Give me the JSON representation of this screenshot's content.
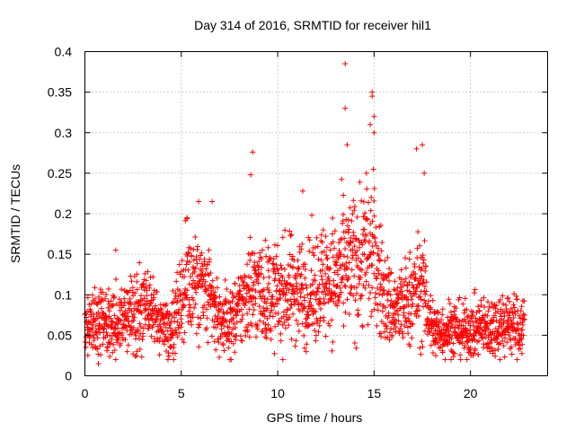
{
  "chart_data": {
    "type": "scatter",
    "title": "Day 314 of 2016, SRMTID for receiver hil1",
    "xlabel": "GPS time / hours",
    "ylabel": "SRMTID / TECUs",
    "xlim": [
      0,
      24
    ],
    "ylim": [
      0,
      0.4
    ],
    "xticks": [
      0,
      5,
      10,
      15,
      20
    ],
    "yticks": [
      0,
      0.05,
      0.1,
      0.15,
      0.2,
      0.25,
      0.3,
      0.35,
      0.4
    ],
    "grid": true,
    "marker": "+",
    "series": [
      {
        "name": "hil1",
        "color": "#ff0000",
        "profile_hours": [
          0,
          0.5,
          1,
          1.5,
          2,
          2.5,
          3,
          3.5,
          4,
          4.5,
          5,
          5.5,
          6,
          6.5,
          7,
          7.5,
          8,
          8.5,
          9,
          9.5,
          10,
          10.5,
          11,
          11.5,
          12,
          12.5,
          13,
          13.5,
          14,
          14.5,
          15,
          15.5,
          16,
          16.5,
          17,
          17.5,
          18,
          18.5,
          19,
          19.5,
          20,
          20.5,
          21,
          21.5,
          22,
          22.5,
          22.8
        ],
        "profile_median": [
          0.06,
          0.065,
          0.07,
          0.065,
          0.07,
          0.075,
          0.08,
          0.075,
          0.065,
          0.06,
          0.1,
          0.12,
          0.11,
          0.09,
          0.07,
          0.065,
          0.08,
          0.11,
          0.105,
          0.1,
          0.1,
          0.105,
          0.11,
          0.1,
          0.11,
          0.12,
          0.12,
          0.13,
          0.14,
          0.15,
          0.15,
          0.1,
          0.08,
          0.085,
          0.1,
          0.11,
          0.06,
          0.055,
          0.06,
          0.055,
          0.055,
          0.06,
          0.06,
          0.065,
          0.065,
          0.06,
          0.065
        ],
        "notable_points": [
          {
            "x": 0.7,
            "y": 0.015
          },
          {
            "x": 1.6,
            "y": 0.155
          },
          {
            "x": 5.3,
            "y": 0.195
          },
          {
            "x": 5.9,
            "y": 0.215
          },
          {
            "x": 6.6,
            "y": 0.215
          },
          {
            "x": 8.6,
            "y": 0.248
          },
          {
            "x": 8.7,
            "y": 0.276
          },
          {
            "x": 11.3,
            "y": 0.228
          },
          {
            "x": 13.5,
            "y": 0.385
          },
          {
            "x": 13.5,
            "y": 0.33
          },
          {
            "x": 13.6,
            "y": 0.285
          },
          {
            "x": 14.9,
            "y": 0.35
          },
          {
            "x": 14.9,
            "y": 0.345
          },
          {
            "x": 15.0,
            "y": 0.32
          },
          {
            "x": 14.8,
            "y": 0.31
          },
          {
            "x": 15.0,
            "y": 0.3
          },
          {
            "x": 14.6,
            "y": 0.25
          },
          {
            "x": 17.2,
            "y": 0.28
          },
          {
            "x": 17.5,
            "y": 0.285
          },
          {
            "x": 17.6,
            "y": 0.25
          },
          {
            "x": 18.2,
            "y": 0.025
          },
          {
            "x": 21.0,
            "y": 0.03
          }
        ]
      }
    ]
  }
}
